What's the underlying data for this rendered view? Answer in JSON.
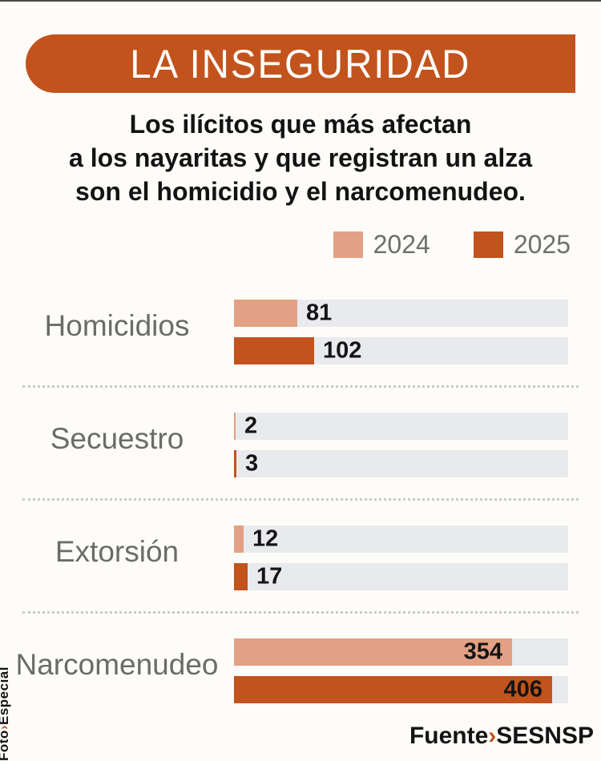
{
  "banner": {
    "title": "LA INSEGURIDAD",
    "color": "#c2531d",
    "text_color": "#ffffff"
  },
  "subtitle": {
    "lines": [
      "Los ilícitos que más afectan",
      "a los nayaritas y que registran un alza",
      "son el homicidio y el narcomenudeo."
    ]
  },
  "legend": [
    {
      "label": "2024",
      "color": "#e2a184"
    },
    {
      "label": "2025",
      "color": "#c2531d"
    }
  ],
  "photo_credit": {
    "prefix": "Foto",
    "separator": "›",
    "separator_color": "#c2531d",
    "value": "Especial"
  },
  "source": {
    "label": "Fuente",
    "separator": "›",
    "separator_color": "#c2531d",
    "value": "SESNSP"
  },
  "chart_data": {
    "type": "bar",
    "orientation": "horizontal",
    "title": "LA INSEGURIDAD",
    "categories": [
      "Homicidios",
      "Secuestro",
      "Extorsión",
      "Narcomenudeo"
    ],
    "series": [
      {
        "name": "2024",
        "color": "#e2a184",
        "values": [
          81,
          2,
          12,
          354
        ]
      },
      {
        "name": "2025",
        "color": "#c2531d",
        "values": [
          102,
          3,
          17,
          406
        ]
      }
    ],
    "xlim": [
      0,
      426
    ],
    "track_color": "#e8eaed",
    "grid": false,
    "legend_position": "top-right",
    "value_labels": "end_of_bar"
  }
}
